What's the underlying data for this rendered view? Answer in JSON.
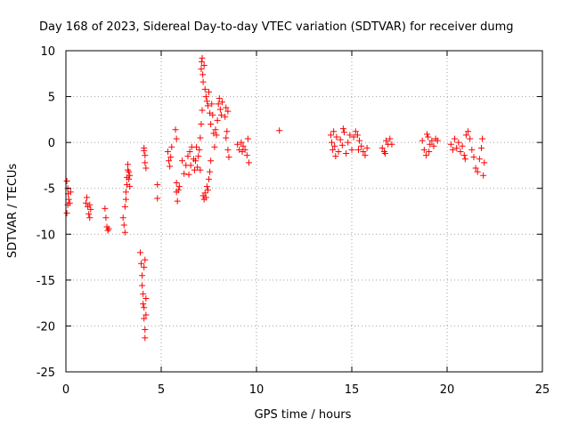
{
  "chart_data": {
    "type": "scatter",
    "title": "Day 168 of 2023, Sidereal Day-to-day VTEC variation (SDTVAR) for receiver dumg",
    "xlabel": "GPS time / hours",
    "ylabel": "SDTVAR / TECUs",
    "xlim": [
      0,
      25
    ],
    "ylim": [
      -25,
      10
    ],
    "xticks": [
      0,
      5,
      10,
      15,
      20,
      25
    ],
    "xtick_labels": [
      "0",
      "5",
      "10",
      "15",
      "20",
      "25"
    ],
    "yticks": [
      10,
      5,
      0,
      -5,
      -10,
      -15,
      -20,
      -25
    ],
    "ytick_labels": [
      "10",
      "5",
      "0",
      "-5",
      "-10",
      "-15",
      "-20",
      "-25"
    ],
    "grid": true,
    "marker": "+",
    "series": [
      {
        "name": "SDTVAR",
        "color": "#ff0000",
        "points": [
          [
            0.05,
            -4.2
          ],
          [
            0.1,
            -5.0
          ],
          [
            0.12,
            -5.6
          ],
          [
            0.15,
            -6.2
          ],
          [
            0.2,
            -6.6
          ],
          [
            0.25,
            -5.4
          ],
          [
            0.05,
            -7.7
          ],
          [
            0.1,
            -6.8
          ],
          [
            1.05,
            -6.6
          ],
          [
            1.1,
            -6.0
          ],
          [
            1.15,
            -7.0
          ],
          [
            1.2,
            -7.8
          ],
          [
            1.25,
            -8.2
          ],
          [
            1.3,
            -7.3
          ],
          [
            1.25,
            -6.8
          ],
          [
            2.05,
            -7.2
          ],
          [
            2.1,
            -8.2
          ],
          [
            2.15,
            -9.2
          ],
          [
            2.2,
            -9.6
          ],
          [
            2.25,
            -9.4
          ],
          [
            3.0,
            -8.2
          ],
          [
            3.05,
            -9.0
          ],
          [
            3.1,
            -9.8
          ],
          [
            3.1,
            -7.0
          ],
          [
            3.15,
            -6.2
          ],
          [
            3.15,
            -5.4
          ],
          [
            3.2,
            -4.6
          ],
          [
            3.2,
            -3.8
          ],
          [
            3.25,
            -3.0
          ],
          [
            3.25,
            -2.4
          ],
          [
            3.3,
            -3.2
          ],
          [
            3.3,
            -4.0
          ],
          [
            3.35,
            -4.8
          ],
          [
            3.35,
            -3.6
          ],
          [
            3.9,
            -12.0
          ],
          [
            3.95,
            -13.2
          ],
          [
            4.0,
            -14.5
          ],
          [
            4.0,
            -15.6
          ],
          [
            4.05,
            -16.5
          ],
          [
            4.05,
            -17.6
          ],
          [
            4.1,
            -18.0
          ],
          [
            4.1,
            -19.2
          ],
          [
            4.15,
            -20.4
          ],
          [
            4.15,
            -21.3
          ],
          [
            4.1,
            -13.6
          ],
          [
            4.15,
            -12.8
          ],
          [
            4.2,
            -17.0
          ],
          [
            4.2,
            -18.8
          ],
          [
            4.1,
            -0.6
          ],
          [
            4.15,
            -1.4
          ],
          [
            4.15,
            -2.2
          ],
          [
            4.2,
            -2.8
          ],
          [
            4.1,
            -0.9
          ],
          [
            4.8,
            -4.6
          ],
          [
            4.8,
            -6.1
          ],
          [
            5.35,
            -1.0
          ],
          [
            5.4,
            -2.0
          ],
          [
            5.45,
            -2.6
          ],
          [
            5.5,
            -1.6
          ],
          [
            5.55,
            -0.5
          ],
          [
            5.8,
            -4.4
          ],
          [
            5.8,
            -5.4
          ],
          [
            5.85,
            -6.4
          ],
          [
            5.9,
            -5.2
          ],
          [
            5.75,
            1.4
          ],
          [
            5.8,
            0.4
          ],
          [
            5.95,
            -4.8
          ],
          [
            6.1,
            -2.0
          ],
          [
            6.2,
            -3.4
          ],
          [
            6.3,
            -2.5
          ],
          [
            6.4,
            -1.5
          ],
          [
            6.5,
            -1.0
          ],
          [
            6.55,
            -2.5
          ],
          [
            6.6,
            -0.5
          ],
          [
            6.7,
            -1.8
          ],
          [
            6.75,
            -3.0
          ],
          [
            6.8,
            -2.0
          ],
          [
            6.9,
            -2.7
          ],
          [
            6.95,
            -1.5
          ],
          [
            7.0,
            -0.8
          ],
          [
            7.05,
            -3.0
          ],
          [
            6.45,
            -3.5
          ],
          [
            6.85,
            -0.5
          ],
          [
            7.05,
            0.5
          ],
          [
            7.1,
            2.0
          ],
          [
            7.15,
            3.5
          ],
          [
            7.2,
            -5.8
          ],
          [
            7.25,
            -6.2
          ],
          [
            7.3,
            -5.5
          ],
          [
            7.35,
            -6.0
          ],
          [
            7.4,
            -4.8
          ],
          [
            7.45,
            -5.2
          ],
          [
            7.5,
            -4.0
          ],
          [
            7.55,
            -3.2
          ],
          [
            7.6,
            -2.0
          ],
          [
            7.1,
            8.0
          ],
          [
            7.12,
            8.8
          ],
          [
            7.15,
            9.2
          ],
          [
            7.18,
            7.4
          ],
          [
            7.2,
            6.6
          ],
          [
            7.25,
            8.4
          ],
          [
            7.3,
            5.8
          ],
          [
            7.35,
            5.0
          ],
          [
            7.4,
            4.5
          ],
          [
            7.45,
            4.0
          ],
          [
            7.5,
            5.5
          ],
          [
            7.55,
            3.2
          ],
          [
            7.6,
            2.0
          ],
          [
            7.65,
            4.2
          ],
          [
            7.7,
            3.0
          ],
          [
            7.75,
            1.0
          ],
          [
            7.8,
            -0.5
          ],
          [
            7.9,
            0.8
          ],
          [
            7.95,
            2.4
          ],
          [
            8.0,
            4.2
          ],
          [
            8.05,
            4.8
          ],
          [
            8.1,
            3.6
          ],
          [
            8.15,
            3.0
          ],
          [
            8.2,
            4.4
          ],
          [
            7.85,
            1.4
          ],
          [
            8.35,
            2.8
          ],
          [
            8.4,
            3.8
          ],
          [
            8.45,
            1.2
          ],
          [
            8.5,
            -0.8
          ],
          [
            8.55,
            -1.6
          ],
          [
            8.4,
            0.5
          ],
          [
            8.5,
            3.4
          ],
          [
            9.0,
            -0.2
          ],
          [
            9.1,
            -0.8
          ],
          [
            9.2,
            0.0
          ],
          [
            9.3,
            -0.4
          ],
          [
            9.4,
            -0.8
          ],
          [
            9.5,
            -1.4
          ],
          [
            9.55,
            0.4
          ],
          [
            9.6,
            -2.2
          ],
          [
            9.25,
            -1.0
          ],
          [
            11.2,
            1.3
          ],
          [
            13.9,
            0.8
          ],
          [
            13.95,
            0.0
          ],
          [
            14.0,
            -0.8
          ],
          [
            14.05,
            1.2
          ],
          [
            14.1,
            -0.4
          ],
          [
            14.2,
            0.6
          ],
          [
            14.3,
            -1.0
          ],
          [
            14.4,
            0.3
          ],
          [
            14.5,
            -0.3
          ],
          [
            14.6,
            1.1
          ],
          [
            14.7,
            -1.2
          ],
          [
            14.8,
            0.0
          ],
          [
            14.9,
            0.8
          ],
          [
            14.15,
            -1.5
          ],
          [
            14.55,
            1.5
          ],
          [
            15.0,
            -0.8
          ],
          [
            15.1,
            0.6
          ],
          [
            15.2,
            1.2
          ],
          [
            15.3,
            0.8
          ],
          [
            15.4,
            0.2
          ],
          [
            15.5,
            -0.4
          ],
          [
            15.6,
            -1.0
          ],
          [
            15.7,
            -1.4
          ],
          [
            15.8,
            -0.6
          ],
          [
            15.35,
            -0.8
          ],
          [
            16.6,
            -0.6
          ],
          [
            16.7,
            -1.0
          ],
          [
            16.8,
            0.2
          ],
          [
            16.9,
            -0.2
          ],
          [
            17.0,
            0.4
          ],
          [
            17.1,
            -0.2
          ],
          [
            16.75,
            -1.2
          ],
          [
            18.7,
            0.2
          ],
          [
            18.8,
            -0.8
          ],
          [
            18.9,
            -1.4
          ],
          [
            19.0,
            0.6
          ],
          [
            19.1,
            -0.2
          ],
          [
            19.2,
            0.2
          ],
          [
            19.3,
            -0.4
          ],
          [
            19.4,
            0.4
          ],
          [
            19.5,
            0.2
          ],
          [
            18.95,
            0.9
          ],
          [
            19.05,
            -1.0
          ],
          [
            20.2,
            -0.2
          ],
          [
            20.3,
            -0.8
          ],
          [
            20.4,
            0.4
          ],
          [
            20.5,
            -0.6
          ],
          [
            20.6,
            0.0
          ],
          [
            20.7,
            -1.0
          ],
          [
            20.8,
            -0.4
          ],
          [
            20.9,
            -1.4
          ],
          [
            21.0,
            0.8
          ],
          [
            21.1,
            1.2
          ],
          [
            21.2,
            0.4
          ],
          [
            21.3,
            -0.8
          ],
          [
            21.4,
            -1.6
          ],
          [
            21.5,
            -2.8
          ],
          [
            21.6,
            -3.2
          ],
          [
            21.7,
            -1.8
          ],
          [
            21.8,
            -0.6
          ],
          [
            21.85,
            0.4
          ],
          [
            21.9,
            -3.6
          ],
          [
            21.95,
            -2.2
          ],
          [
            20.95,
            -1.8
          ]
        ]
      }
    ]
  }
}
